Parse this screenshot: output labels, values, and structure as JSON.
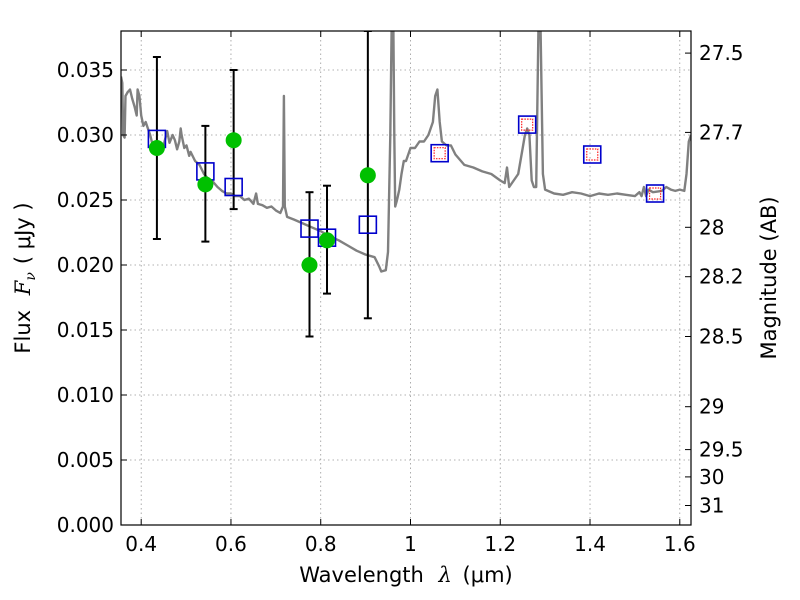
{
  "chart_data": {
    "type": "scatter",
    "xlabel_prefix": "Wavelength",
    "xlabel_math": "λ",
    "xlabel_unit": "(μm)",
    "ylabel_prefix": "Flux",
    "ylabel_math": "F",
    "ylabel_sub": "ν",
    "ylabel_unit": "( μJy )",
    "y2label": "Magnitude (AB)",
    "xlim": [
      0.355,
      1.625
    ],
    "ylim": [
      0.0,
      0.038
    ],
    "grid": true,
    "colors": {
      "spectrum": "#808080",
      "observed": "#00c000",
      "model_box": "#0000cc",
      "model_box_inner": "#ff2020",
      "errorbar": "#000000",
      "grid": "#999999"
    },
    "x_ticks": [
      {
        "value": 0.4,
        "label": "0.4"
      },
      {
        "value": 0.6,
        "label": "0.6"
      },
      {
        "value": 0.8,
        "label": "0.8"
      },
      {
        "value": 1.0,
        "label": "1"
      },
      {
        "value": 1.2,
        "label": "1.2"
      },
      {
        "value": 1.4,
        "label": "1.4"
      },
      {
        "value": 1.6,
        "label": "1.6"
      }
    ],
    "y_ticks": [
      {
        "value": 0.0,
        "label": "0.000"
      },
      {
        "value": 0.005,
        "label": "0.005"
      },
      {
        "value": 0.01,
        "label": "0.010"
      },
      {
        "value": 0.015,
        "label": "0.015"
      },
      {
        "value": 0.02,
        "label": "0.020"
      },
      {
        "value": 0.025,
        "label": "0.025"
      },
      {
        "value": 0.03,
        "label": "0.030"
      },
      {
        "value": 0.035,
        "label": "0.035"
      }
    ],
    "y2_ticks": [
      {
        "flux": 0.0363,
        "label": "27.5"
      },
      {
        "flux": 0.0302,
        "label": "27.7"
      },
      {
        "flux": 0.0229,
        "label": "28"
      },
      {
        "flux": 0.0191,
        "label": "28.2"
      },
      {
        "flux": 0.0145,
        "label": "28.5"
      },
      {
        "flux": 0.0091,
        "label": "29"
      },
      {
        "flux": 0.0058,
        "label": "29.5"
      },
      {
        "flux": 0.0037,
        "label": "30"
      },
      {
        "flux": 0.0015,
        "label": "31"
      }
    ],
    "observed_points": [
      {
        "x": 0.435,
        "y": 0.029,
        "err_low": 0.022,
        "err_high": 0.036
      },
      {
        "x": 0.543,
        "y": 0.0262,
        "err_low": 0.0218,
        "err_high": 0.0307
      },
      {
        "x": 0.606,
        "y": 0.0296,
        "err_low": 0.0243,
        "err_high": 0.035
      },
      {
        "x": 0.775,
        "y": 0.02,
        "err_low": 0.0145,
        "err_high": 0.0256
      },
      {
        "x": 0.814,
        "y": 0.0219,
        "err_low": 0.0178,
        "err_high": 0.0261
      },
      {
        "x": 0.905,
        "y": 0.0269,
        "err_low": 0.0159,
        "err_high": 0.038
      }
    ],
    "model_points": [
      {
        "x": 0.435,
        "y": 0.0297,
        "inner": false
      },
      {
        "x": 0.543,
        "y": 0.0272,
        "inner": false
      },
      {
        "x": 0.606,
        "y": 0.026,
        "inner": false
      },
      {
        "x": 0.775,
        "y": 0.0228,
        "inner": false
      },
      {
        "x": 0.814,
        "y": 0.0221,
        "inner": false
      },
      {
        "x": 0.905,
        "y": 0.0231,
        "inner": false
      },
      {
        "x": 1.065,
        "y": 0.0286,
        "inner": true
      },
      {
        "x": 1.26,
        "y": 0.0308,
        "inner": true
      },
      {
        "x": 1.405,
        "y": 0.0285,
        "inner": true
      },
      {
        "x": 1.545,
        "y": 0.0255,
        "inner": true
      }
    ],
    "spectrum": [
      [
        0.355,
        0.0345
      ],
      [
        0.358,
        0.034
      ],
      [
        0.36,
        0.03
      ],
      [
        0.363,
        0.0298
      ],
      [
        0.365,
        0.033
      ],
      [
        0.37,
        0.0333
      ],
      [
        0.375,
        0.0335
      ],
      [
        0.38,
        0.0328
      ],
      [
        0.385,
        0.0322
      ],
      [
        0.39,
        0.0315
      ],
      [
        0.392,
        0.0335
      ],
      [
        0.396,
        0.033
      ],
      [
        0.4,
        0.0315
      ],
      [
        0.405,
        0.0307
      ],
      [
        0.41,
        0.031
      ],
      [
        0.415,
        0.0305
      ],
      [
        0.42,
        0.03
      ],
      [
        0.425,
        0.0293
      ],
      [
        0.43,
        0.0291
      ],
      [
        0.44,
        0.0292
      ],
      [
        0.45,
        0.0292
      ],
      [
        0.458,
        0.0303
      ],
      [
        0.463,
        0.0294
      ],
      [
        0.47,
        0.03
      ],
      [
        0.475,
        0.0296
      ],
      [
        0.48,
        0.0289
      ],
      [
        0.485,
        0.0295
      ],
      [
        0.488,
        0.0305
      ],
      [
        0.49,
        0.03
      ],
      [
        0.496,
        0.029
      ],
      [
        0.501,
        0.0292
      ],
      [
        0.507,
        0.0284
      ],
      [
        0.51,
        0.0287
      ],
      [
        0.52,
        0.028
      ],
      [
        0.53,
        0.0277
      ],
      [
        0.54,
        0.027
      ],
      [
        0.55,
        0.0266
      ],
      [
        0.56,
        0.0264
      ],
      [
        0.57,
        0.026
      ],
      [
        0.58,
        0.0257
      ],
      [
        0.59,
        0.0255
      ],
      [
        0.6,
        0.0255
      ],
      [
        0.61,
        0.0253
      ],
      [
        0.62,
        0.0253
      ],
      [
        0.63,
        0.025
      ],
      [
        0.64,
        0.0251
      ],
      [
        0.65,
        0.0247
      ],
      [
        0.656,
        0.0255
      ],
      [
        0.66,
        0.0247
      ],
      [
        0.67,
        0.0246
      ],
      [
        0.68,
        0.0244
      ],
      [
        0.69,
        0.0245
      ],
      [
        0.7,
        0.0242
      ],
      [
        0.71,
        0.024
      ],
      [
        0.716,
        0.0245
      ],
      [
        0.718,
        0.033
      ],
      [
        0.72,
        0.0245
      ],
      [
        0.725,
        0.0237
      ],
      [
        0.74,
        0.0235
      ],
      [
        0.76,
        0.0232
      ],
      [
        0.78,
        0.0229
      ],
      [
        0.8,
        0.0226
      ],
      [
        0.82,
        0.0222
      ],
      [
        0.84,
        0.0219
      ],
      [
        0.86,
        0.0215
      ],
      [
        0.88,
        0.0211
      ],
      [
        0.9,
        0.0208
      ],
      [
        0.92,
        0.0206
      ],
      [
        0.93,
        0.0199
      ],
      [
        0.935,
        0.0195
      ],
      [
        0.945,
        0.0196
      ],
      [
        0.95,
        0.021
      ],
      [
        0.955,
        0.03
      ],
      [
        0.958,
        0.038
      ],
      [
        0.962,
        0.038
      ],
      [
        0.964,
        0.03
      ],
      [
        0.966,
        0.0245
      ],
      [
        0.97,
        0.025
      ],
      [
        0.975,
        0.0258
      ],
      [
        0.98,
        0.027
      ],
      [
        0.985,
        0.028
      ],
      [
        0.99,
        0.028
      ],
      [
        1.0,
        0.029
      ],
      [
        1.01,
        0.029
      ],
      [
        1.02,
        0.0295
      ],
      [
        1.03,
        0.0295
      ],
      [
        1.04,
        0.03
      ],
      [
        1.05,
        0.031
      ],
      [
        1.055,
        0.033
      ],
      [
        1.06,
        0.0335
      ],
      [
        1.065,
        0.031
      ],
      [
        1.07,
        0.0295
      ],
      [
        1.08,
        0.0292
      ],
      [
        1.09,
        0.0292
      ],
      [
        1.1,
        0.0285
      ],
      [
        1.12,
        0.0277
      ],
      [
        1.14,
        0.0275
      ],
      [
        1.16,
        0.0272
      ],
      [
        1.18,
        0.027
      ],
      [
        1.2,
        0.0265
      ],
      [
        1.21,
        0.0263
      ],
      [
        1.215,
        0.0275
      ],
      [
        1.22,
        0.026
      ],
      [
        1.23,
        0.0265
      ],
      [
        1.24,
        0.027
      ],
      [
        1.25,
        0.029
      ],
      [
        1.255,
        0.03
      ],
      [
        1.26,
        0.0305
      ],
      [
        1.265,
        0.03
      ],
      [
        1.27,
        0.0265
      ],
      [
        1.275,
        0.026
      ],
      [
        1.28,
        0.026
      ],
      [
        1.285,
        0.038
      ],
      [
        1.29,
        0.038
      ],
      [
        1.295,
        0.027
      ],
      [
        1.3,
        0.0258
      ],
      [
        1.32,
        0.0255
      ],
      [
        1.34,
        0.0254
      ],
      [
        1.36,
        0.0256
      ],
      [
        1.38,
        0.0255
      ],
      [
        1.4,
        0.0253
      ],
      [
        1.42,
        0.0255
      ],
      [
        1.44,
        0.0254
      ],
      [
        1.46,
        0.0255
      ],
      [
        1.48,
        0.0254
      ],
      [
        1.5,
        0.0253
      ],
      [
        1.51,
        0.0256
      ],
      [
        1.515,
        0.0253
      ],
      [
        1.52,
        0.026
      ],
      [
        1.525,
        0.0253
      ],
      [
        1.53,
        0.0258
      ],
      [
        1.54,
        0.0256
      ],
      [
        1.56,
        0.0257
      ],
      [
        1.57,
        0.026
      ],
      [
        1.58,
        0.0258
      ],
      [
        1.59,
        0.0257
      ],
      [
        1.6,
        0.0258
      ],
      [
        1.61,
        0.0257
      ],
      [
        1.615,
        0.027
      ],
      [
        1.62,
        0.0295
      ],
      [
        1.625,
        0.03
      ]
    ]
  }
}
